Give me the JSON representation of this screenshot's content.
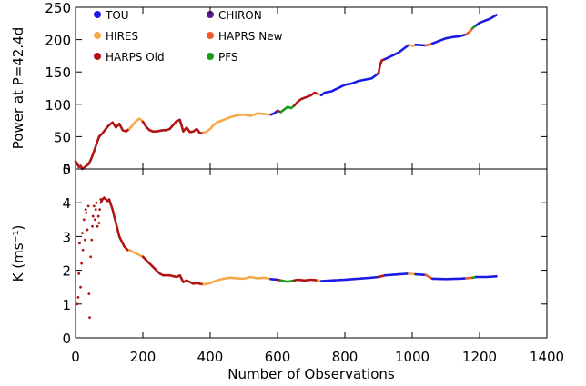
{
  "chart_data": [
    {
      "type": "line",
      "ylabel": "Power at P=42.4d",
      "xlim": [
        0,
        1400
      ],
      "ylim": [
        0,
        250
      ],
      "yticks": [
        0,
        50,
        100,
        150,
        200,
        250
      ],
      "legend": {
        "placement": "top-left",
        "entries": [
          {
            "name": "TOU",
            "color": "#1a1ae6"
          },
          {
            "name": "CHIRON",
            "color": "#5a1a8a"
          },
          {
            "name": "HIRES",
            "color": "#f5a94a"
          },
          {
            "name": "HAPRS New",
            "color": "#f05a28"
          },
          {
            "name": "HARPS Old",
            "color": "#b01414"
          },
          {
            "name": "PFS",
            "color": "#1a9a1a"
          }
        ]
      },
      "series": [
        {
          "color": "#b01414",
          "x": [
            0,
            5,
            10,
            15,
            20,
            25,
            30,
            40,
            50,
            60,
            70,
            80,
            90,
            100,
            110,
            120,
            130,
            140,
            150,
            160
          ],
          "y": [
            12,
            8,
            3,
            5,
            0,
            2,
            4,
            8,
            20,
            35,
            50,
            55,
            62,
            68,
            72,
            64,
            70,
            60,
            58,
            62
          ]
        },
        {
          "color": "#f5a94a",
          "x": [
            160,
            170,
            180,
            190,
            200
          ],
          "y": [
            62,
            68,
            74,
            78,
            73
          ]
        },
        {
          "color": "#b01414",
          "x": [
            200,
            210,
            220,
            230,
            240,
            250,
            260,
            270,
            280,
            290,
            300,
            310,
            320,
            330,
            340,
            350,
            360,
            370,
            380
          ],
          "y": [
            73,
            65,
            60,
            58,
            58,
            59,
            60,
            60,
            62,
            68,
            74,
            76,
            58,
            64,
            57,
            58,
            62,
            55,
            56
          ]
        },
        {
          "color": "#f5a94a",
          "x": [
            380,
            390,
            400,
            410,
            420,
            440,
            460,
            480,
            500,
            520,
            540,
            560,
            580
          ],
          "y": [
            56,
            58,
            62,
            68,
            72,
            76,
            80,
            83,
            84,
            82,
            86,
            85,
            84
          ]
        },
        {
          "color": "#1a1ae6",
          "x": [
            580,
            590,
            600
          ],
          "y": [
            84,
            86,
            90
          ]
        },
        {
          "color": "#b01414",
          "x": [
            600,
            610
          ],
          "y": [
            90,
            88
          ]
        },
        {
          "color": "#1a9a1a",
          "x": [
            610,
            620,
            630,
            640,
            650
          ],
          "y": [
            88,
            92,
            96,
            94,
            98
          ]
        },
        {
          "color": "#b01414",
          "x": [
            650,
            660,
            670,
            680,
            690,
            700,
            710,
            720
          ],
          "y": [
            98,
            104,
            108,
            110,
            112,
            114,
            118,
            116
          ]
        },
        {
          "color": "#f5a94a",
          "x": [
            720,
            730
          ],
          "y": [
            116,
            114
          ]
        },
        {
          "color": "#1a1ae6",
          "x": [
            730,
            740,
            760,
            780,
            800,
            820,
            840,
            860,
            880,
            900
          ],
          "y": [
            114,
            118,
            120,
            125,
            130,
            132,
            136,
            138,
            140,
            148
          ]
        },
        {
          "color": "#b01414",
          "x": [
            900,
            905,
            910,
            920
          ],
          "y": [
            148,
            162,
            168,
            170
          ]
        },
        {
          "color": "#1a1ae6",
          "x": [
            920,
            940,
            960,
            980,
            990
          ],
          "y": [
            170,
            175,
            180,
            188,
            192
          ]
        },
        {
          "color": "#f5a94a",
          "x": [
            990,
            1000,
            1010
          ],
          "y": [
            192,
            190,
            192
          ]
        },
        {
          "color": "#1a1ae6",
          "x": [
            1010,
            1040
          ],
          "y": [
            192,
            191
          ]
        },
        {
          "color": "#f05a28",
          "x": [
            1040,
            1050,
            1060
          ],
          "y": [
            191,
            192,
            194
          ]
        },
        {
          "color": "#1a1ae6",
          "x": [
            1060,
            1080,
            1100,
            1120,
            1140,
            1160
          ],
          "y": [
            194,
            198,
            202,
            204,
            205,
            208
          ]
        },
        {
          "color": "#f05a28",
          "x": [
            1160,
            1170,
            1180
          ],
          "y": [
            208,
            212,
            218
          ]
        },
        {
          "color": "#1a9a1a",
          "x": [
            1180,
            1190
          ],
          "y": [
            218,
            222
          ]
        },
        {
          "color": "#1a1ae6",
          "x": [
            1190,
            1200,
            1210,
            1220,
            1230,
            1240,
            1250
          ],
          "y": [
            222,
            226,
            228,
            230,
            232,
            235,
            238
          ]
        }
      ]
    },
    {
      "type": "line",
      "xlabel": "Number of Observations",
      "ylabel": "K (ms⁻¹)",
      "xlim": [
        0,
        1400
      ],
      "ylim": [
        0,
        5
      ],
      "xticks": [
        0,
        200,
        400,
        600,
        800,
        1000,
        1200,
        1400
      ],
      "yticks": [
        0,
        1,
        2,
        3,
        4,
        5
      ],
      "scatter_points": {
        "color": "#b01414",
        "x": [
          5,
          8,
          10,
          12,
          15,
          18,
          20,
          22,
          25,
          28,
          30,
          32,
          35,
          38,
          40,
          42,
          45,
          48,
          50,
          52,
          55,
          58,
          60,
          62,
          65,
          68,
          70,
          72,
          75
        ],
        "y": [
          1.0,
          1.2,
          1.9,
          2.8,
          1.5,
          2.2,
          3.1,
          2.6,
          3.5,
          2.9,
          3.8,
          3.7,
          3.2,
          3.9,
          1.3,
          0.6,
          2.4,
          2.9,
          3.3,
          3.6,
          3.9,
          3.5,
          3.8,
          4.0,
          3.3,
          3.6,
          3.4,
          3.8,
          4.1
        ]
      },
      "series": [
        {
          "color": "#b01414",
          "x": [
            75,
            80,
            85,
            90,
            95,
            100,
            105,
            110,
            115,
            120,
            125,
            130,
            135,
            140,
            145,
            150,
            155,
            160
          ],
          "y": [
            4.0,
            4.1,
            4.15,
            4.1,
            4.05,
            4.1,
            3.95,
            3.8,
            3.6,
            3.4,
            3.2,
            3.0,
            2.9,
            2.8,
            2.7,
            2.65,
            2.6,
            2.6
          ]
        },
        {
          "color": "#f5a94a",
          "x": [
            160,
            170,
            180,
            190,
            200
          ],
          "y": [
            2.6,
            2.55,
            2.5,
            2.45,
            2.4
          ]
        },
        {
          "color": "#b01414",
          "x": [
            200,
            210,
            220,
            230,
            240,
            250,
            260,
            280,
            300,
            310,
            320,
            330,
            340,
            350,
            360,
            370,
            380
          ],
          "y": [
            2.4,
            2.3,
            2.2,
            2.1,
            2.0,
            1.9,
            1.85,
            1.85,
            1.8,
            1.85,
            1.65,
            1.7,
            1.65,
            1.6,
            1.62,
            1.6,
            1.58
          ]
        },
        {
          "color": "#f5a94a",
          "x": [
            380,
            400,
            420,
            440,
            460,
            480,
            500,
            520,
            540,
            560,
            580
          ],
          "y": [
            1.58,
            1.62,
            1.7,
            1.75,
            1.78,
            1.76,
            1.75,
            1.8,
            1.76,
            1.78,
            1.74
          ]
        },
        {
          "color": "#1a1ae6",
          "x": [
            580,
            600
          ],
          "y": [
            1.74,
            1.72
          ]
        },
        {
          "color": "#b01414",
          "x": [
            600,
            610
          ],
          "y": [
            1.72,
            1.7
          ]
        },
        {
          "color": "#1a9a1a",
          "x": [
            610,
            620,
            630,
            640,
            650
          ],
          "y": [
            1.7,
            1.68,
            1.66,
            1.68,
            1.7
          ]
        },
        {
          "color": "#b01414",
          "x": [
            650,
            660,
            680,
            700,
            720
          ],
          "y": [
            1.7,
            1.72,
            1.7,
            1.72,
            1.7
          ]
        },
        {
          "color": "#f5a94a",
          "x": [
            720,
            730
          ],
          "y": [
            1.7,
            1.68
          ]
        },
        {
          "color": "#1a1ae6",
          "x": [
            730,
            760,
            800,
            840,
            880,
            900
          ],
          "y": [
            1.68,
            1.7,
            1.72,
            1.75,
            1.78,
            1.8
          ]
        },
        {
          "color": "#b01414",
          "x": [
            900,
            920
          ],
          "y": [
            1.8,
            1.85
          ]
        },
        {
          "color": "#1a1ae6",
          "x": [
            920,
            960,
            990
          ],
          "y": [
            1.85,
            1.88,
            1.9
          ]
        },
        {
          "color": "#f5a94a",
          "x": [
            990,
            1010
          ],
          "y": [
            1.9,
            1.88
          ]
        },
        {
          "color": "#1a1ae6",
          "x": [
            1010,
            1040
          ],
          "y": [
            1.88,
            1.86
          ]
        },
        {
          "color": "#f05a28",
          "x": [
            1040,
            1060
          ],
          "y": [
            1.86,
            1.75
          ]
        },
        {
          "color": "#1a1ae6",
          "x": [
            1060,
            1100,
            1140,
            1160
          ],
          "y": [
            1.75,
            1.74,
            1.75,
            1.76
          ]
        },
        {
          "color": "#f05a28",
          "x": [
            1160,
            1180
          ],
          "y": [
            1.76,
            1.78
          ]
        },
        {
          "color": "#1a9a1a",
          "x": [
            1180,
            1190
          ],
          "y": [
            1.78,
            1.8
          ]
        },
        {
          "color": "#1a1ae6",
          "x": [
            1190,
            1220,
            1250
          ],
          "y": [
            1.8,
            1.8,
            1.82
          ]
        }
      ]
    }
  ]
}
